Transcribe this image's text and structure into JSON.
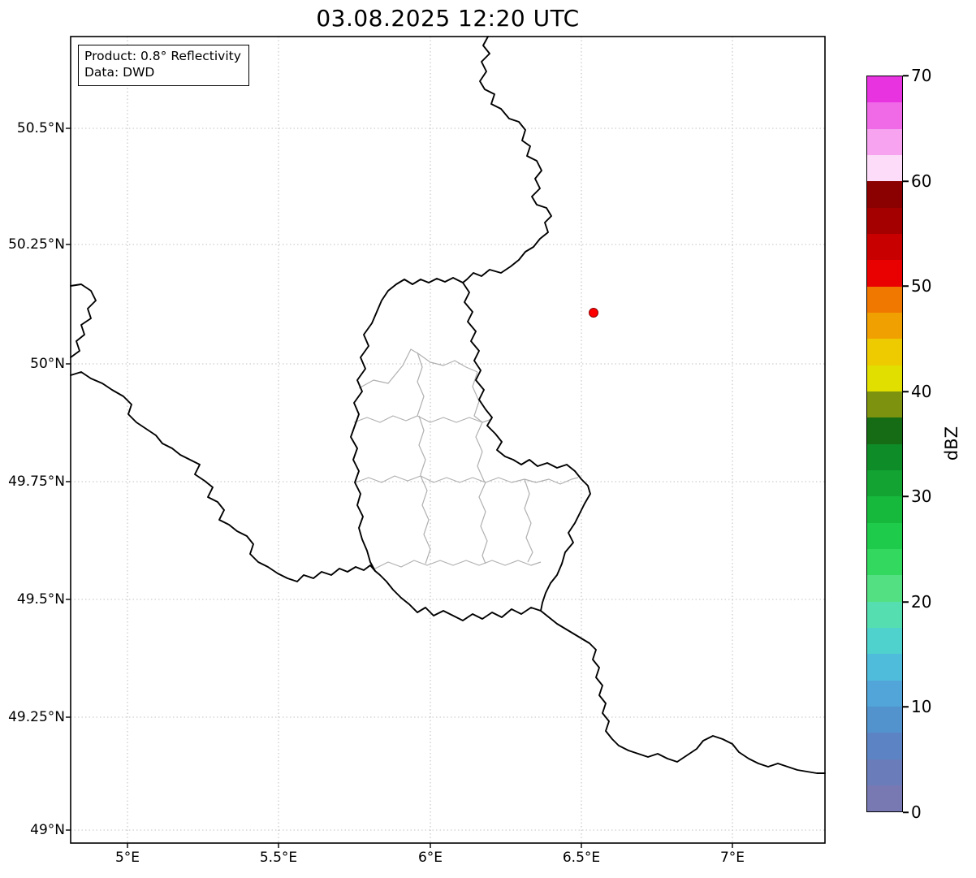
{
  "title": "03.08.2025 12:20 UTC",
  "info_box": {
    "line1": "Product: 0.8° Reflectivity",
    "line2": "Data: DWD"
  },
  "axes": {
    "x_tick_labels": [
      "5°E",
      "5.5°E",
      "6°E",
      "6.5°E",
      "7°E"
    ],
    "y_tick_labels": [
      "50.5°N",
      "50.25°N",
      "50°N",
      "49.75°N",
      "49.5°N",
      "49.25°N",
      "49°N"
    ],
    "grid_style": "dotted"
  },
  "map": {
    "region": "Luxembourg and surrounding borders (Belgium, Germany, France)",
    "marker": "radar-site-dot",
    "marker_color": "#ff0000",
    "national_border_color": "#000000",
    "canton_border_color": "#b0b0b0",
    "grid_color": "#c2c2c2"
  },
  "colorbar": {
    "label": "dBZ",
    "tick_labels": [
      "70",
      "60",
      "50",
      "40",
      "30",
      "20",
      "10",
      "0"
    ],
    "value_range": [
      0,
      70
    ],
    "segment_colors_top_to_bottom": [
      "#e833e0",
      "#f06ae8",
      "#f7a3f0",
      "#fcdcf8",
      "#8b0000",
      "#a50000",
      "#c80000",
      "#e90000",
      "#f07800",
      "#f0a000",
      "#eecb00",
      "#e0df00",
      "#7d920e",
      "#156c15",
      "#0e8c28",
      "#12a332",
      "#16b93c",
      "#1fcb4a",
      "#33d95f",
      "#53e083",
      "#55dfb0",
      "#4fd2cd",
      "#4fbcdc",
      "#51a5d8",
      "#5292cd",
      "#5c84c4",
      "#6a7cba",
      "#7878b2"
    ]
  }
}
